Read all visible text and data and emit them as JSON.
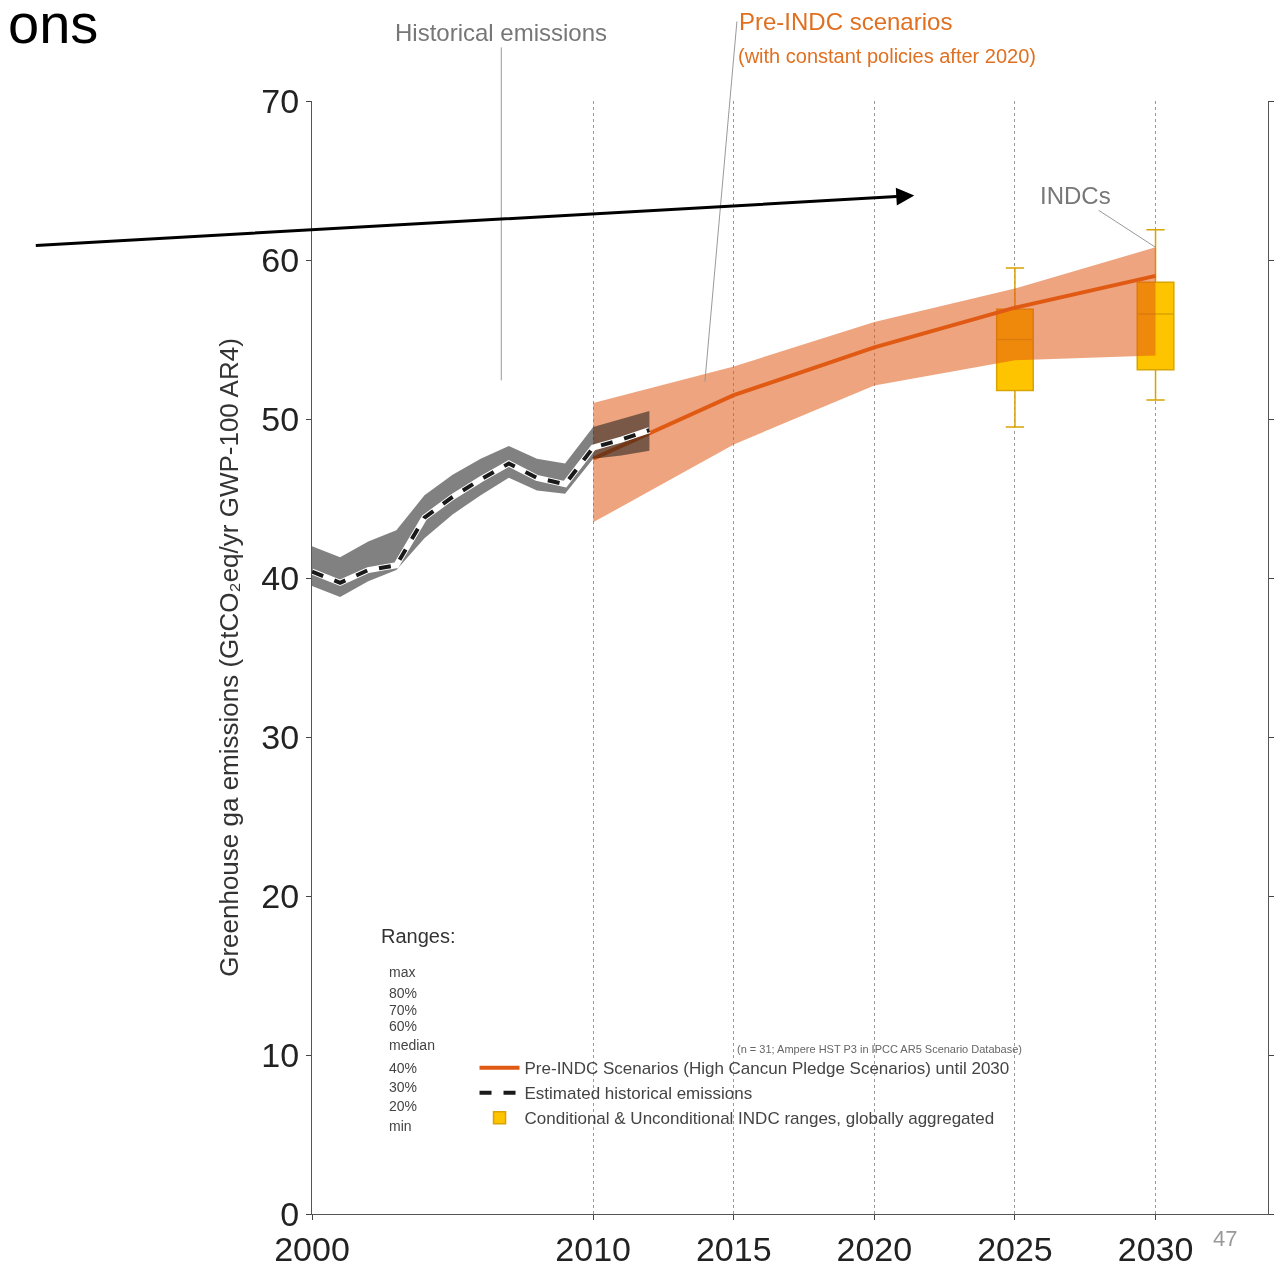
{
  "chart_data": {
    "type": "line",
    "ylabel": "Greenhouse ga emissions (GtCO₂eq/yr GWP-100 AR4)",
    "xlim": [
      2000,
      2034
    ],
    "xticks": [
      2000,
      2010,
      2015,
      2020,
      2025,
      2030
    ],
    "ylim": [
      0,
      70
    ],
    "yticks": [
      0,
      10,
      20,
      30,
      40,
      50,
      60,
      70
    ],
    "grid": "x",
    "legend": "bottom left",
    "series": [
      {
        "name": "Pre-INDC Scenarios (High Cancun Pledge Scenarios) until 2030",
        "color": "#e05a14",
        "x": [
          2010,
          2015,
          2020,
          2025,
          2030
        ],
        "values": [
          47.5,
          51.5,
          54.5,
          57,
          59
        ],
        "lower": [
          43.5,
          48.4,
          52.1,
          53.7,
          54.0
        ],
        "upper": [
          51,
          53.3,
          56.1,
          58.2,
          60.8
        ]
      },
      {
        "name": "Estimated historical emissions",
        "color": "#1a1a1a",
        "line_style": "dashed",
        "x": [
          2000,
          2001,
          2002,
          2003,
          2004,
          2005,
          2006,
          2007,
          2008,
          2009,
          2010,
          2011,
          2012
        ],
        "values": [
          40.4,
          39.7,
          40.5,
          40.8,
          43.8,
          45.1,
          46.2,
          47.2,
          46.3,
          45.9,
          48.2,
          48.7,
          49.3
        ],
        "lower": [
          39.5,
          38.8,
          39.8,
          40.5,
          42.5,
          44,
          45.2,
          46.3,
          45.5,
          45.3,
          47.5,
          47.7,
          48
        ],
        "upper": [
          42,
          41.3,
          42.3,
          43,
          45.2,
          46.5,
          47.5,
          48.3,
          47.5,
          47.2,
          49.5,
          50,
          50.5
        ]
      },
      {
        "name": "Conditional & Unconditional INDC ranges, globally aggregated",
        "type": "box",
        "color": "#ffc400",
        "x": [
          2025,
          2030
        ],
        "boxes": [
          {
            "low": 49.5,
            "q1": 51.8,
            "median": 55,
            "q3": 56.9,
            "high": 59.5
          },
          {
            "low": 51.2,
            "q1": 53.1,
            "median": 56.6,
            "q3": 58.6,
            "high": 61.9
          }
        ]
      }
    ],
    "annotations": [
      "Historical emissions",
      "Pre-INDC scenarios",
      "(with constant policies after 2020)",
      {
        "text": "INDCs",
        "x": 2030,
        "y": 60.8
      },
      "(n = 31; Ampere HST P3 in IPCC AR5 Scenario Database)",
      "Ranges:",
      "max",
      "80%",
      "70%",
      "60%",
      "median",
      "40%",
      "30%",
      "20%",
      "min",
      "ons",
      "47"
    ]
  }
}
